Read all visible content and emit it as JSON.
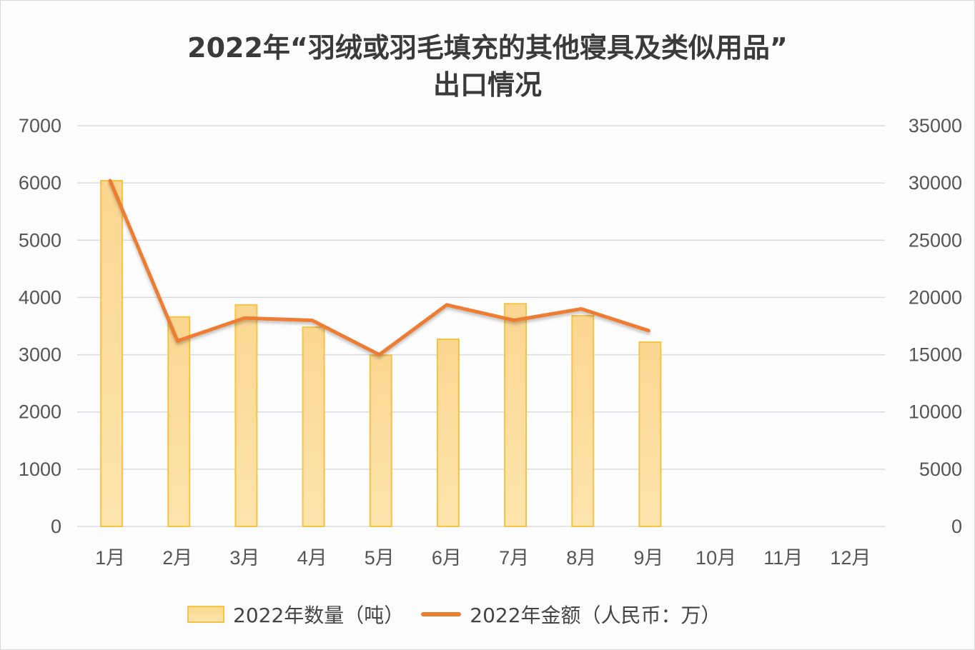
{
  "title": {
    "line1": "2022年“羽绒或羽毛填充的其他寝具及类似用品”",
    "line2": "出口情况"
  },
  "legend": {
    "bar_label": "2022年数量（吨）",
    "line_label": "2022年金额（人民币：万）"
  },
  "colors": {
    "bar_fill": "#fdd98f",
    "bar_border": "#f3c445",
    "line": "#ed7d31",
    "grid": "#d9dbe0"
  },
  "chart_data": {
    "type": "bar+line",
    "title": "2022年“羽绒或羽毛填充的其他寝具及类似用品”出口情况",
    "categories": [
      "1月",
      "2月",
      "3月",
      "4月",
      "5月",
      "6月",
      "7月",
      "8月",
      "9月",
      "10月",
      "11月",
      "12月"
    ],
    "series": [
      {
        "name": "2022年数量（吨）",
        "type": "bar",
        "axis": "left",
        "values": [
          6040,
          3660,
          3870,
          3480,
          2990,
          3270,
          3890,
          3680,
          3220,
          null,
          null,
          null
        ]
      },
      {
        "name": "2022年金额（人民币：万）",
        "type": "line",
        "axis": "right",
        "values": [
          30200,
          16200,
          18200,
          18000,
          15000,
          19350,
          18000,
          19000,
          17100,
          null,
          null,
          null
        ]
      }
    ],
    "y_left": {
      "ticks": [
        0,
        1000,
        2000,
        3000,
        4000,
        5000,
        6000,
        7000
      ],
      "range": [
        0,
        7000
      ]
    },
    "y_right": {
      "ticks": [
        0,
        5000,
        10000,
        15000,
        20000,
        25000,
        30000,
        35000
      ],
      "range": [
        0,
        35000
      ]
    },
    "grid": true,
    "legend_position": "bottom"
  }
}
